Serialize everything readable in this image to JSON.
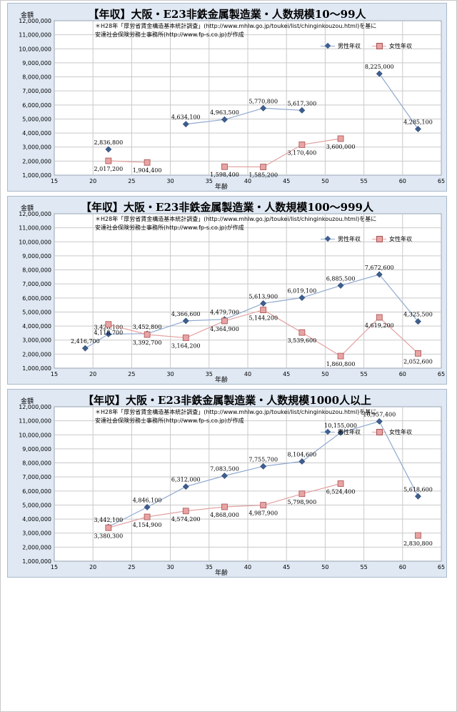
{
  "chart_data": [
    {
      "type": "scatter",
      "title": "【年収】大阪・E23非鉄金属製造業・人数規模10～99人",
      "xlabel": "年齢",
      "ylabel": "金額",
      "note_line1": "＊H28年「厚労省賃金構造基本統計調査」(http://www.mhlw.go.jp/toukei/list/chinginkouzou.html)を基に",
      "note_line2": "安達社会保険労務士事務所(http://www.fp-s.co.jp)が作成",
      "xlim": [
        15,
        65
      ],
      "ylim": [
        1000000,
        12000000
      ],
      "x_ticks": [
        "15",
        "20",
        "25",
        "30",
        "35",
        "40",
        "45",
        "50",
        "55",
        "60",
        "65"
      ],
      "y_ticks": [
        "1,000,000",
        "2,000,000",
        "3,000,000",
        "4,000,000",
        "5,000,000",
        "6,000,000",
        "7,000,000",
        "8,000,000",
        "9,000,000",
        "10,000,000",
        "11,000,000",
        "12,000,000"
      ],
      "grid": true,
      "legend_position": "top-right",
      "series": [
        {
          "name": "男性年収",
          "color": "#3e5f8f",
          "segments": [
            [
              {
                "x": 22,
                "y": 2836800,
                "label": "2,836,800"
              }
            ],
            [
              {
                "x": 32,
                "y": 4634100,
                "label": "4,634,100"
              },
              {
                "x": 37,
                "y": 4963500,
                "label": "4,963,500"
              },
              {
                "x": 42,
                "y": 5770800,
                "label": "5,770,800"
              },
              {
                "x": 47,
                "y": 5617300,
                "label": "5,617,300"
              }
            ],
            [
              {
                "x": 57,
                "y": 8225000,
                "label": "8,225,000"
              },
              {
                "x": 62,
                "y": 4285100,
                "label": "4,285,100"
              }
            ]
          ]
        },
        {
          "name": "女性年収",
          "color": "#c0504d",
          "segments": [
            [
              {
                "x": 22,
                "y": 2017200,
                "label": "2,017,200"
              },
              {
                "x": 27,
                "y": 1904400,
                "label": "1,904,400"
              }
            ],
            [
              {
                "x": 37,
                "y": 1598400,
                "label": "1,598,400"
              },
              {
                "x": 42,
                "y": 1585200,
                "label": "1,585,200"
              },
              {
                "x": 47,
                "y": 3170400,
                "label": "3,170,400"
              },
              {
                "x": 52,
                "y": 3600000,
                "label": "3,600,000"
              }
            ]
          ]
        }
      ]
    },
    {
      "type": "scatter",
      "title": "【年収】大阪・E23非鉄金属製造業・人数規模100～999人",
      "xlabel": "年齢",
      "ylabel": "金額",
      "note_line1": "＊H28年「厚労省賃金構造基本統計調査」(http://www.mhlw.go.jp/toukei/list/chinginkouzou.html)を基に",
      "note_line2": "安達社会保険労務士事務所(http://www.fp-s.co.jp)が作成",
      "xlim": [
        15,
        65
      ],
      "ylim": [
        1000000,
        12000000
      ],
      "x_ticks": [
        "15",
        "20",
        "25",
        "30",
        "35",
        "40",
        "45",
        "50",
        "55",
        "60",
        "65"
      ],
      "y_ticks": [
        "1,000,000",
        "2,000,000",
        "3,000,000",
        "4,000,000",
        "5,000,000",
        "6,000,000",
        "7,000,000",
        "8,000,000",
        "9,000,000",
        "10,000,000",
        "11,000,000",
        "12,000,000"
      ],
      "grid": true,
      "legend_position": "top-right",
      "series": [
        {
          "name": "男性年収",
          "color": "#3e5f8f",
          "segments": [
            [
              {
                "x": 19,
                "y": 2416700,
                "label": "2,416,700"
              },
              {
                "x": 22,
                "y": 3428100,
                "label": "3,428,100"
              },
              {
                "x": 27,
                "y": 3452800,
                "label": "3,452,800"
              },
              {
                "x": 32,
                "y": 4366600,
                "label": "4,366,600"
              },
              {
                "x": 37,
                "y": 4479700,
                "label": "4,479,700"
              },
              {
                "x": 42,
                "y": 5613900,
                "label": "5,613,900"
              },
              {
                "x": 47,
                "y": 6019100,
                "label": "6,019,100"
              },
              {
                "x": 52,
                "y": 6885500,
                "label": "6,885,500"
              },
              {
                "x": 57,
                "y": 7672600,
                "label": "7,672,600"
              },
              {
                "x": 62,
                "y": 4325500,
                "label": "4,325,500"
              }
            ]
          ]
        },
        {
          "name": "女性年収",
          "color": "#c0504d",
          "segments": [
            [
              {
                "x": 22,
                "y": 4118700,
                "label": "4,118,700"
              },
              {
                "x": 27,
                "y": 3392700,
                "label": "3,392,700"
              },
              {
                "x": 32,
                "y": 3164200,
                "label": "3,164,200"
              },
              {
                "x": 37,
                "y": 4364900,
                "label": "4,364,900"
              },
              {
                "x": 42,
                "y": 5144200,
                "label": "5,144,200"
              },
              {
                "x": 47,
                "y": 3539600,
                "label": "3,539,600"
              },
              {
                "x": 52,
                "y": 1860800,
                "label": "1,860,800"
              },
              {
                "x": 57,
                "y": 4619200,
                "label": "4,619,200"
              },
              {
                "x": 62,
                "y": 2052600,
                "label": "2,052,600"
              }
            ]
          ]
        }
      ]
    },
    {
      "type": "scatter",
      "title": "【年収】大阪・E23非鉄金属製造業・人数規模1000人以上",
      "xlabel": "年齢",
      "ylabel": "金額",
      "note_line1": "＊H28年「厚労省賃金構造基本統計調査」(http://www.mhlw.go.jp/toukei/list/chinginkouzou.html)を基に",
      "note_line2": "安達社会保険労務士事務所(http://www.fp-s.co.jp)が作成",
      "xlim": [
        15,
        65
      ],
      "ylim": [
        1000000,
        12000000
      ],
      "x_ticks": [
        "15",
        "20",
        "25",
        "30",
        "35",
        "40",
        "45",
        "50",
        "55",
        "60",
        "65"
      ],
      "y_ticks": [
        "1,000,000",
        "2,000,000",
        "3,000,000",
        "4,000,000",
        "5,000,000",
        "6,000,000",
        "7,000,000",
        "8,000,000",
        "9,000,000",
        "10,000,000",
        "11,000,000",
        "12,000,000"
      ],
      "grid": true,
      "legend_position": "top-right",
      "series": [
        {
          "name": "男性年収",
          "color": "#3e5f8f",
          "segments": [
            [
              {
                "x": 22,
                "y": 3442100,
                "label": "3,442,100"
              },
              {
                "x": 27,
                "y": 4846100,
                "label": "4,846,100"
              },
              {
                "x": 32,
                "y": 6312000,
                "label": "6,312,000"
              },
              {
                "x": 37,
                "y": 7083500,
                "label": "7,083,500"
              },
              {
                "x": 42,
                "y": 7755700,
                "label": "7,755,700"
              },
              {
                "x": 47,
                "y": 8104600,
                "label": "8,104,600"
              },
              {
                "x": 52,
                "y": 10155000,
                "label": "10,155,000"
              },
              {
                "x": 57,
                "y": 10957400,
                "label": "10,957,400"
              },
              {
                "x": 62,
                "y": 5618600,
                "label": "5,618,600"
              }
            ]
          ]
        },
        {
          "name": "女性年収",
          "color": "#c0504d",
          "segments": [
            [
              {
                "x": 22,
                "y": 3380300,
                "label": "3,380,300"
              },
              {
                "x": 27,
                "y": 4154900,
                "label": "4,154,900"
              },
              {
                "x": 32,
                "y": 4574200,
                "label": "4,574,200"
              },
              {
                "x": 37,
                "y": 4868000,
                "label": "4,868,000"
              },
              {
                "x": 42,
                "y": 4987900,
                "label": "4,987,900"
              },
              {
                "x": 47,
                "y": 5798900,
                "label": "5,798,900"
              },
              {
                "x": 52,
                "y": 6524400,
                "label": "6,524,400"
              }
            ],
            [
              {
                "x": 62,
                "y": 2830800,
                "label": "2,830,800"
              }
            ]
          ]
        }
      ]
    }
  ]
}
